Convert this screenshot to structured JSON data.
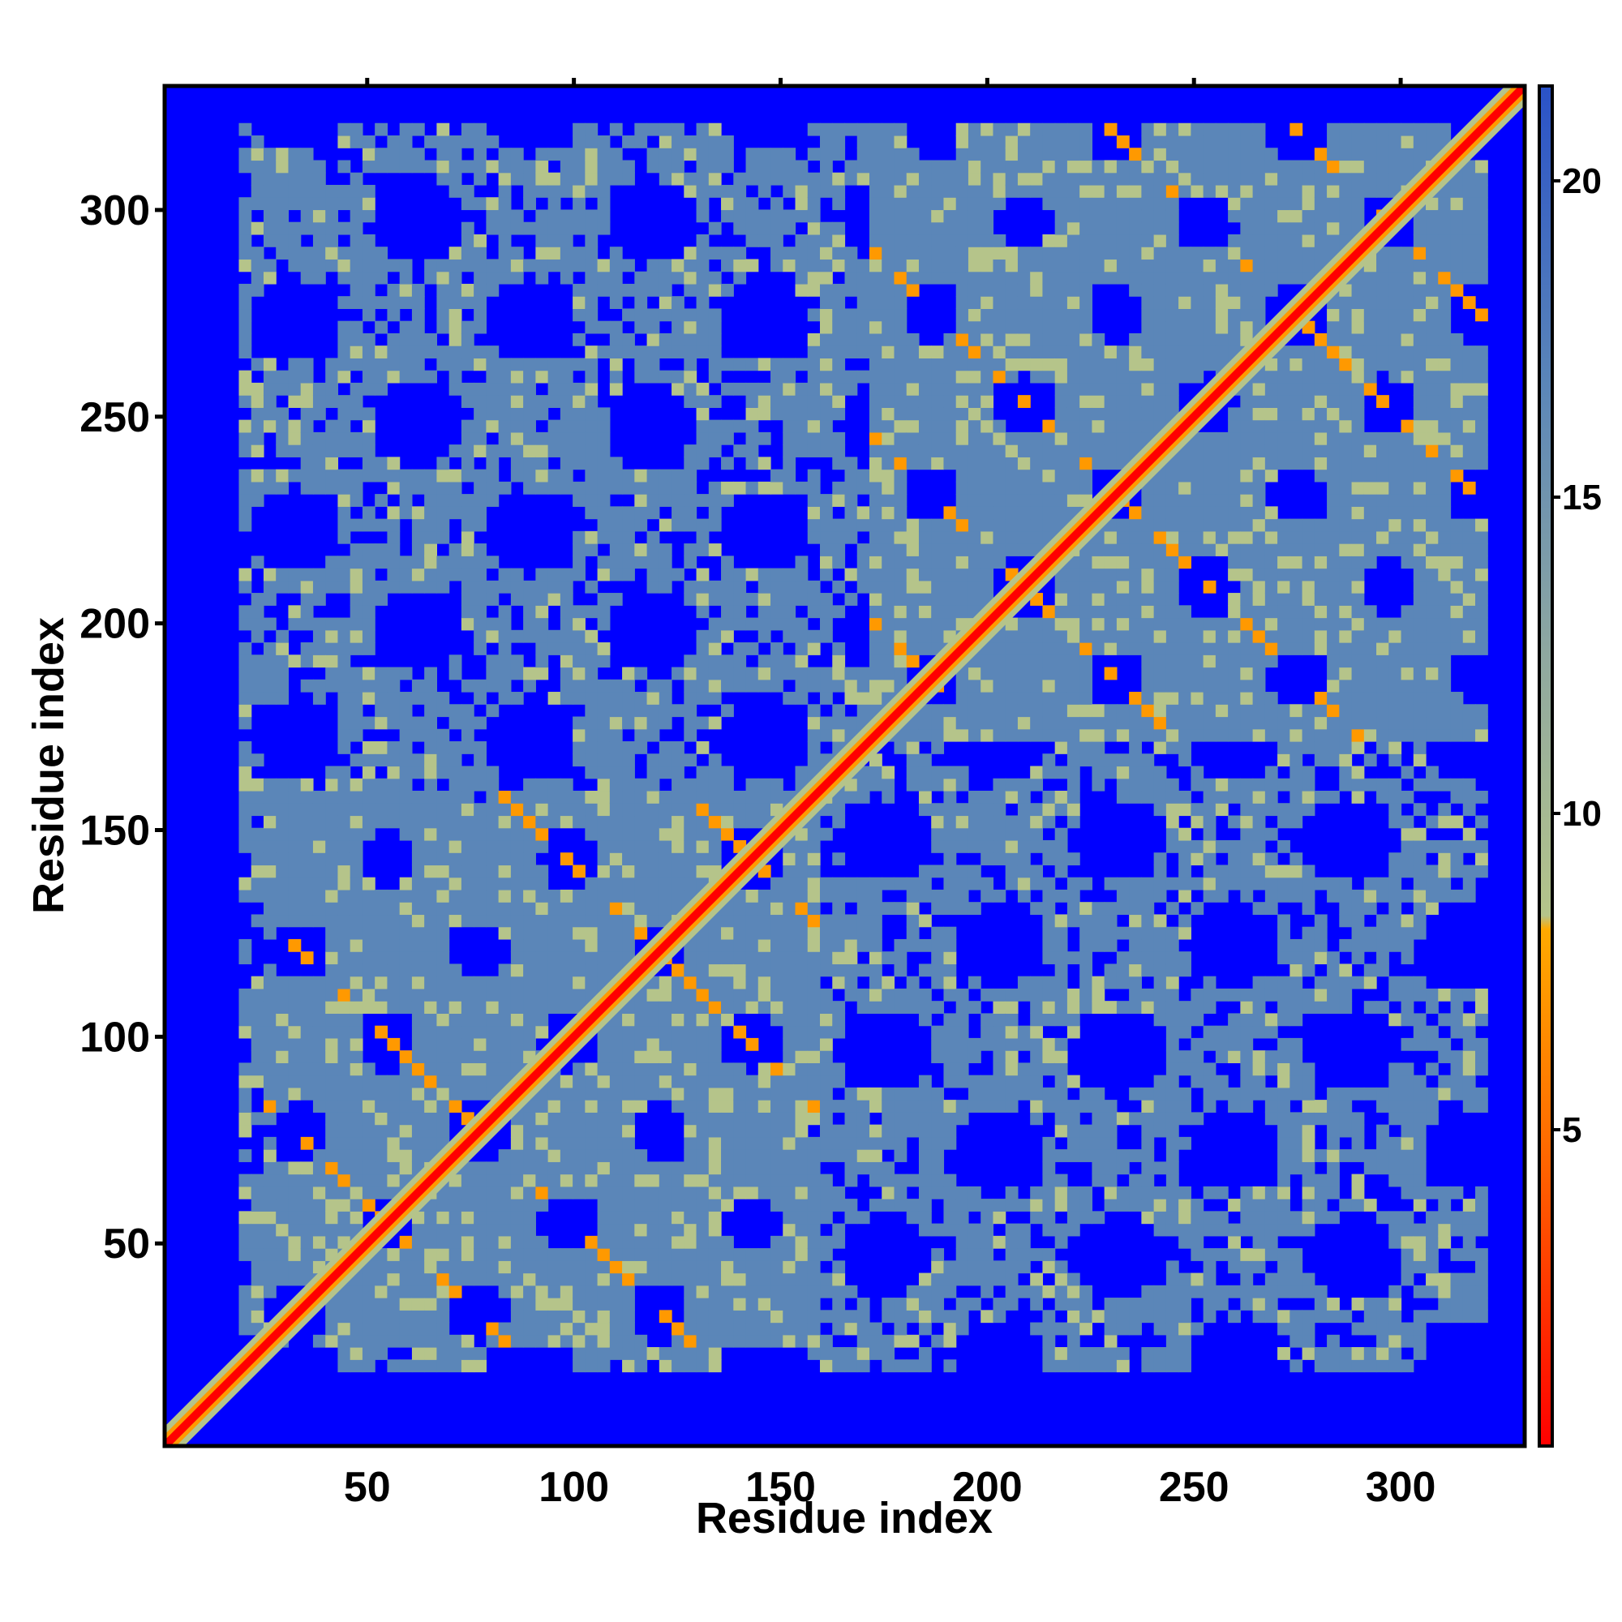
{
  "chart_data": {
    "type": "heatmap",
    "title": "",
    "xlabel": "Residue index",
    "ylabel": "Residue index",
    "xlim": [
      1,
      330
    ],
    "ylim": [
      1,
      330
    ],
    "x_ticks": [
      50,
      100,
      150,
      200,
      250,
      300
    ],
    "y_ticks": [
      50,
      100,
      150,
      200,
      250,
      300
    ],
    "colorbar": {
      "ticks": [
        5,
        10,
        15,
        20
      ],
      "range": [
        0,
        21.5
      ],
      "colors": {
        "near": "#ff0000",
        "close": "#ff9900",
        "mid": "#b5c48a",
        "far": "#5b86b8",
        "background": "#0000ff"
      }
    },
    "legend": "colorbar right",
    "grid": false
  }
}
